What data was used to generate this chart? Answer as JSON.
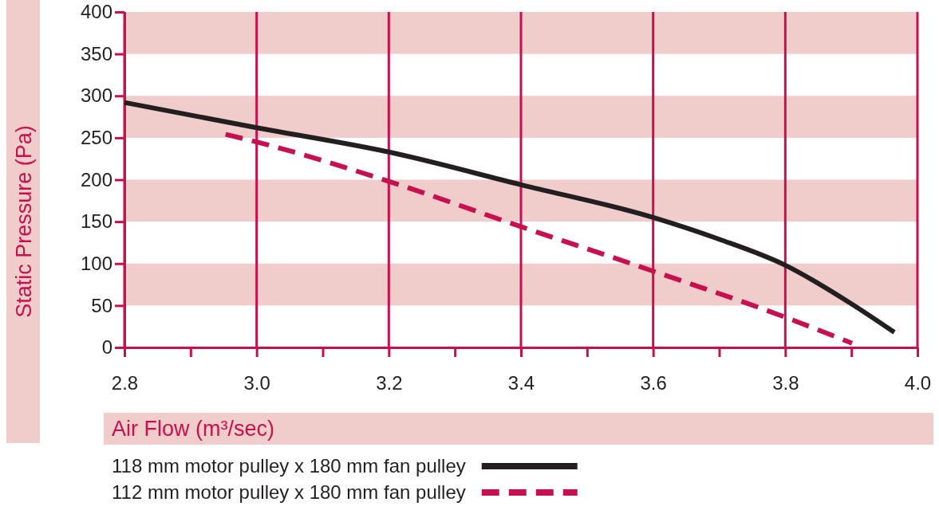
{
  "chart_data": {
    "type": "line",
    "xlabel": "Air Flow (m³/sec)",
    "ylabel": "Static Pressure (Pa)",
    "xlim": [
      2.8,
      4.0
    ],
    "ylim": [
      0,
      400
    ],
    "xticks": [
      {
        "value": 2.8,
        "label": "2.8"
      },
      {
        "value": 2.9,
        "label": null
      },
      {
        "value": 3.0,
        "label": "3.0"
      },
      {
        "value": 3.1,
        "label": null
      },
      {
        "value": 3.2,
        "label": "3.2"
      },
      {
        "value": 3.3,
        "label": null
      },
      {
        "value": 3.4,
        "label": "3.4"
      },
      {
        "value": 3.5,
        "label": null
      },
      {
        "value": 3.6,
        "label": "3.6"
      },
      {
        "value": 3.7,
        "label": null
      },
      {
        "value": 3.8,
        "label": "3.8"
      },
      {
        "value": 3.9,
        "label": null
      },
      {
        "value": 4.0,
        "label": "4.0"
      }
    ],
    "yticks": [
      0,
      50,
      100,
      150,
      200,
      250,
      300,
      350,
      400
    ],
    "grid": true,
    "legend": "bottom",
    "series": [
      {
        "name": "118 mm motor pulley x 180 mm fan pulley",
        "color": "#231f20",
        "line_style": "solid",
        "x": [
          2.8,
          3.0,
          3.2,
          3.4,
          3.6,
          3.7,
          3.8,
          3.9,
          3.965
        ],
        "values": [
          292,
          262,
          233,
          194,
          155,
          129,
          98,
          52,
          18
        ]
      },
      {
        "name": "112 mm motor pulley x 180 mm fan pulley",
        "color": "#c8104e",
        "line_style": "dashed",
        "x": [
          2.953,
          3.0,
          3.2,
          3.4,
          3.6,
          3.8,
          3.901
        ],
        "values": [
          254,
          245,
          198,
          144,
          91,
          36,
          5
        ]
      }
    ]
  }
}
